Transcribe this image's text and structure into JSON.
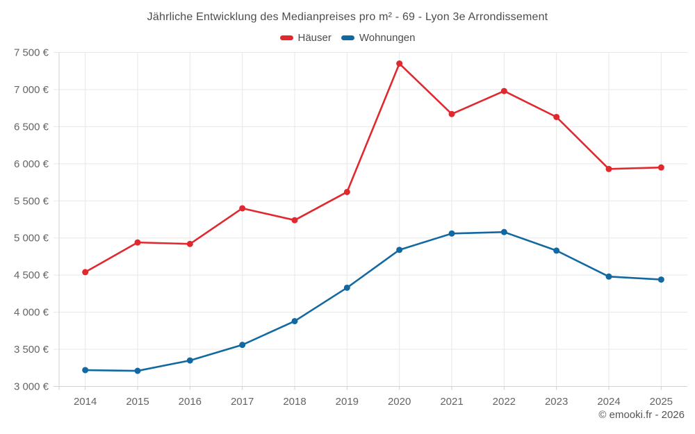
{
  "chart_data": {
    "type": "line",
    "title": "Jährliche Entwicklung des Medianpreises pro m² - 69 - Lyon 3e Arrondissement",
    "xlabel": "",
    "ylabel": "",
    "categories": [
      "2014",
      "2015",
      "2016",
      "2017",
      "2018",
      "2019",
      "2020",
      "2021",
      "2022",
      "2023",
      "2024",
      "2025"
    ],
    "series": [
      {
        "name": "Häuser",
        "color": "#e0282e",
        "values": [
          4540,
          4940,
          4920,
          5400,
          5240,
          5620,
          7350,
          6670,
          6980,
          6630,
          5930,
          5950
        ]
      },
      {
        "name": "Wohnungen",
        "color": "#1269a2",
        "values": [
          3220,
          3210,
          3350,
          3560,
          3880,
          4330,
          4840,
          5060,
          5080,
          4830,
          4480,
          4440
        ]
      }
    ],
    "ylim": [
      3000,
      7500
    ],
    "yticks": [
      {
        "value": 3000,
        "label": "3 000 €"
      },
      {
        "value": 3500,
        "label": "3 500 €"
      },
      {
        "value": 4000,
        "label": "4 000 €"
      },
      {
        "value": 4500,
        "label": "4 500 €"
      },
      {
        "value": 5000,
        "label": "5 000 €"
      },
      {
        "value": 5500,
        "label": "5 500 €"
      },
      {
        "value": 6000,
        "label": "6 000 €"
      },
      {
        "value": 6500,
        "label": "6 500 €"
      },
      {
        "value": 7000,
        "label": "7 000 €"
      },
      {
        "value": 7500,
        "label": "7 500 €"
      }
    ],
    "grid": true,
    "legend_position": "top",
    "colors": {
      "grid": "#e7e7e7",
      "axis_line": "#d2d2d2",
      "tick": "#cfcfcf",
      "axis_text": "#646464"
    }
  },
  "footer": {
    "copyright": "© emooki.fr - 2026"
  }
}
